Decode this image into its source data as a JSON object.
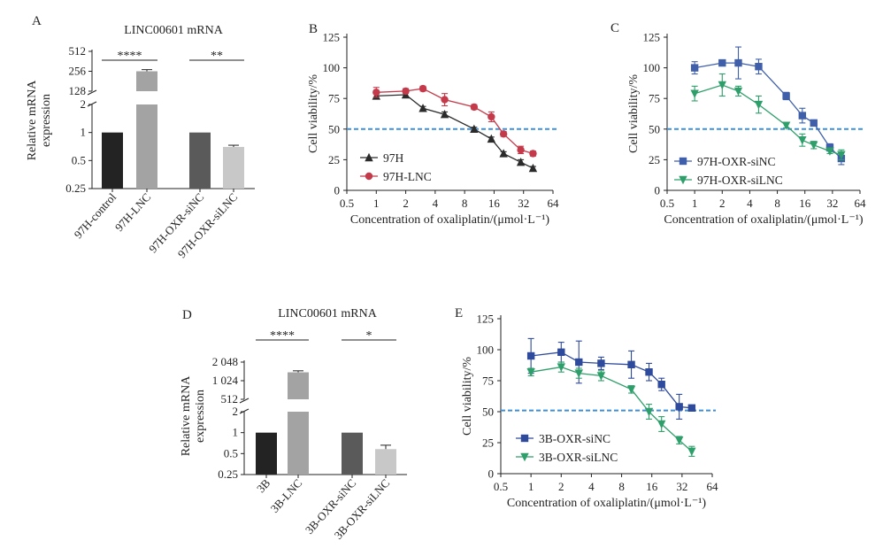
{
  "chart_data": [
    {
      "id": "A",
      "panel_label": "A",
      "type": "bar",
      "title": "LINC00601 mRNA",
      "ylabel": [
        "Relative mRNA",
        "expression"
      ],
      "yscale": "log2-broken",
      "upper_ticks": [
        "512",
        "256",
        "128"
      ],
      "lower_ticks": [
        "2",
        "1",
        "0.5",
        "0.25"
      ],
      "categories": [
        "97H-control",
        "97H-LNC",
        "97H-OXR-siNC",
        "97H-OXR-siLNC"
      ],
      "values": [
        1,
        256,
        1,
        0.7
      ],
      "errors": [
        0,
        15,
        0,
        0.03
      ],
      "colors": [
        "#232323",
        "#a3a3a3",
        "#5a5a5a",
        "#c8c8c8"
      ],
      "significance": [
        {
          "from": 0,
          "to": 1,
          "label": "****"
        },
        {
          "from": 2,
          "to": 3,
          "label": "**"
        }
      ]
    },
    {
      "id": "B",
      "panel_label": "B",
      "type": "line",
      "xscale": "log2",
      "xticks": [
        "0.5",
        "1",
        "2",
        "4",
        "8",
        "16",
        "32",
        "64"
      ],
      "yticks": [
        "0",
        "25",
        "50",
        "75",
        "100",
        "125"
      ],
      "ylim": [
        0,
        125
      ],
      "xlabel": "Concentration of oxaliplatin/(μmol·L⁻¹)",
      "ylabel": "Cell viability/%",
      "reference_y": 50,
      "legend_position": "bottom-left",
      "series": [
        {
          "name": "97H",
          "color": "#2b2b2b",
          "marker": "triangle-up",
          "x": [
            1,
            2,
            3,
            5,
            10,
            15,
            20,
            30,
            40
          ],
          "y": [
            77,
            78,
            67,
            62,
            50,
            42,
            30,
            23,
            18
          ],
          "err": [
            2,
            2,
            1.5,
            2,
            1.5,
            1.5,
            1.5,
            2,
            1.5
          ]
        },
        {
          "name": "97H-LNC",
          "color": "#c43a4a",
          "marker": "circle",
          "x": [
            1,
            2,
            3,
            5,
            10,
            15,
            20,
            30,
            40
          ],
          "y": [
            80,
            81,
            83,
            74,
            68,
            60,
            46,
            33,
            30
          ],
          "err": [
            4,
            2,
            2,
            5,
            2,
            4,
            2,
            3,
            2
          ]
        }
      ]
    },
    {
      "id": "C",
      "panel_label": "C",
      "type": "line",
      "xscale": "log2",
      "xticks": [
        "0.5",
        "1",
        "2",
        "4",
        "8",
        "16",
        "32",
        "64"
      ],
      "yticks": [
        "0",
        "25",
        "50",
        "75",
        "100",
        "125"
      ],
      "ylim": [
        0,
        125
      ],
      "xlabel": "Concentration of oxaliplatin/(μmol·L⁻¹)",
      "ylabel": "Cell viability/%",
      "reference_y": 50,
      "legend_position": "bottom-left",
      "series": [
        {
          "name": "97H-OXR-siNC",
          "color": "#3f5fab",
          "marker": "square",
          "x": [
            1,
            2,
            3,
            5,
            10,
            15,
            20,
            30,
            40
          ],
          "y": [
            100,
            104,
            104,
            101,
            77,
            61,
            55,
            35,
            26
          ],
          "err": [
            5,
            2,
            13,
            6,
            3,
            6,
            2,
            3,
            5
          ]
        },
        {
          "name": "97H-OXR-siLNC",
          "color": "#2e9f6a",
          "marker": "triangle-down",
          "x": [
            1,
            2,
            3,
            5,
            10,
            15,
            20,
            30,
            40
          ],
          "y": [
            79,
            86,
            81,
            70,
            53,
            41,
            37,
            32,
            29
          ],
          "err": [
            6,
            9,
            4,
            7,
            2,
            5,
            3,
            2,
            4
          ]
        }
      ]
    },
    {
      "id": "D",
      "panel_label": "D",
      "type": "bar",
      "title": "LINC00601 mRNA",
      "ylabel": [
        "Relative mRNA",
        "expression"
      ],
      "yscale": "log2-broken",
      "upper_ticks": [
        "2 048",
        "1 024",
        "512"
      ],
      "lower_ticks": [
        "2",
        "1",
        "0.5",
        "0.25"
      ],
      "categories": [
        "3B",
        "3B-LNC",
        "3B-OXR-siNC",
        "3B-OXR-siLNC"
      ],
      "values": [
        1,
        1400,
        1,
        0.58
      ],
      "errors": [
        0,
        80,
        0,
        0.08
      ],
      "colors": [
        "#232323",
        "#a3a3a3",
        "#5a5a5a",
        "#c8c8c8"
      ],
      "significance": [
        {
          "from": 0,
          "to": 1,
          "label": "****"
        },
        {
          "from": 2,
          "to": 3,
          "label": "*"
        }
      ]
    },
    {
      "id": "E",
      "panel_label": "E",
      "type": "line",
      "xscale": "log2",
      "xticks": [
        "0.5",
        "1",
        "2",
        "4",
        "8",
        "16",
        "32",
        "64"
      ],
      "yticks": [
        "0",
        "25",
        "50",
        "75",
        "100",
        "125"
      ],
      "ylim": [
        0,
        125
      ],
      "xlabel": "Concentration of oxaliplatin/(μmol·L⁻¹)",
      "ylabel": "Cell viability/%",
      "reference_y": 51,
      "legend_position": "bottom-left",
      "series": [
        {
          "name": "3B-OXR-siNC",
          "color": "#2e4a9c",
          "marker": "square",
          "x": [
            1,
            2,
            3,
            5,
            10,
            15,
            20,
            30,
            40
          ],
          "y": [
            95,
            98,
            90,
            89,
            88,
            82,
            72,
            54,
            53
          ],
          "err": [
            14,
            8,
            17,
            5,
            11,
            7,
            5,
            10,
            2
          ]
        },
        {
          "name": "3B-OXR-siLNC",
          "color": "#2e9f6a",
          "marker": "triangle-down",
          "x": [
            1,
            2,
            3,
            5,
            10,
            15,
            20,
            30,
            40
          ],
          "y": [
            82,
            86,
            81,
            79,
            68,
            50,
            40,
            27,
            18
          ],
          "err": [
            3,
            4,
            4,
            4,
            3,
            6,
            6,
            3,
            4
          ]
        }
      ]
    }
  ]
}
